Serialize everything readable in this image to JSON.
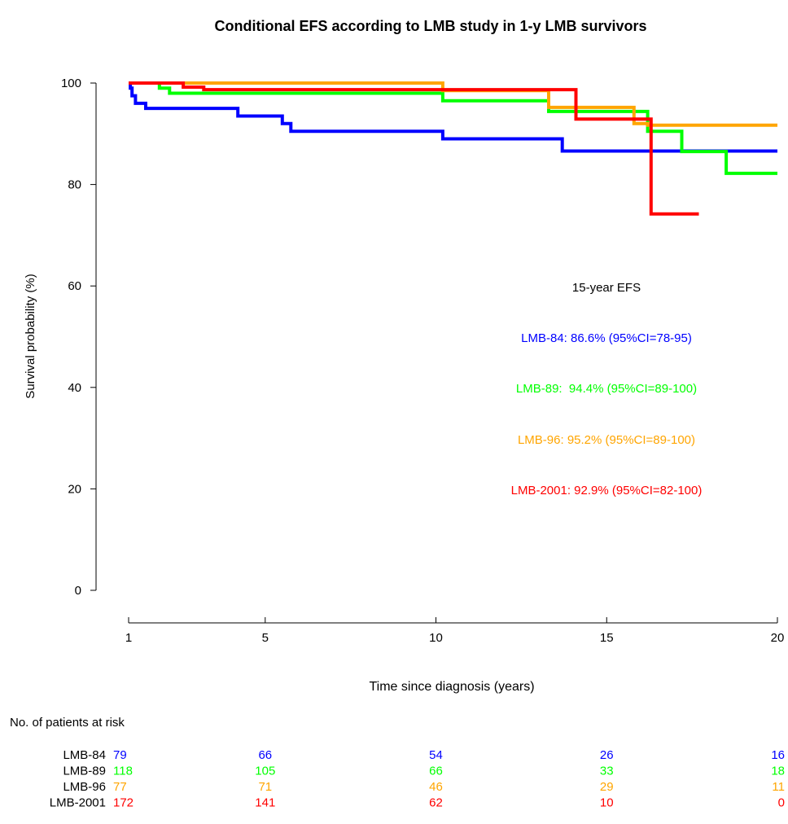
{
  "chart_data": {
    "type": "line",
    "title": "Conditional EFS according to LMB study in 1-y LMB survivors",
    "xlabel": "Time since diagnosis (years)",
    "ylabel": "Survival probability (%)",
    "xlim": [
      1,
      20
    ],
    "ylim": [
      0,
      100
    ],
    "xticks": [
      1,
      5,
      10,
      15,
      20
    ],
    "yticks": [
      0,
      20,
      40,
      60,
      80,
      100
    ],
    "grid": false,
    "step": true,
    "series": [
      {
        "name": "LMB-84",
        "color": "#0000ff",
        "x": [
          1,
          1.05,
          1.1,
          1.2,
          1.3,
          1.5,
          4.2,
          5.5,
          5.75,
          10.2,
          13.7,
          20
        ],
        "y": [
          100,
          99,
          97.5,
          96,
          96,
          95,
          93.5,
          92,
          90.5,
          89,
          86.6,
          86.6
        ]
      },
      {
        "name": "LMB-89",
        "color": "#00ff00",
        "x": [
          1,
          1.9,
          2.2,
          10.2,
          13.3,
          15.5,
          16.2,
          17.2,
          18.5,
          20
        ],
        "y": [
          100,
          99,
          98,
          96.5,
          94.4,
          94.4,
          90.5,
          86.5,
          82.2,
          82.2
        ]
      },
      {
        "name": "LMB-96",
        "color": "#ffa500",
        "x": [
          1,
          10.2,
          13.3,
          15.8,
          16.2,
          20
        ],
        "y": [
          100,
          98.5,
          95.2,
          92,
          91.7,
          91.7
        ]
      },
      {
        "name": "LMB-2001",
        "color": "#ff0000",
        "x": [
          1,
          2.6,
          3.2,
          13.1,
          14.1,
          16.3,
          17.7
        ],
        "y": [
          100,
          99.2,
          98.7,
          98.7,
          92.9,
          74.2,
          74.2
        ]
      }
    ],
    "annotation": {
      "header": "15-year EFS",
      "lines": [
        {
          "text": "LMB-84: 86.6% (95%CI=78-95)",
          "color": "#0000ff"
        },
        {
          "text": "LMB-89:  94.4% (95%CI=89-100)",
          "color": "#00ff00"
        },
        {
          "text": "LMB-96: 95.2% (95%CI=89-100)",
          "color": "#ffa500"
        },
        {
          "text": "LMB-2001: 92.9% (95%CI=82-100)",
          "color": "#ff0000"
        }
      ]
    },
    "risk_table": {
      "title": "No. of patients at risk",
      "times": [
        1,
        5,
        10,
        15,
        20
      ],
      "rows": [
        {
          "name": "LMB-84",
          "color": "#0000ff",
          "values": [
            79,
            66,
            54,
            26,
            16
          ]
        },
        {
          "name": "LMB-89",
          "color": "#00ff00",
          "values": [
            118,
            105,
            66,
            33,
            18
          ]
        },
        {
          "name": "LMB-96",
          "color": "#ffa500",
          "values": [
            77,
            71,
            46,
            29,
            11
          ]
        },
        {
          "name": "LMB-2001",
          "color": "#ff0000",
          "values": [
            172,
            141,
            62,
            10,
            0
          ]
        }
      ]
    }
  }
}
